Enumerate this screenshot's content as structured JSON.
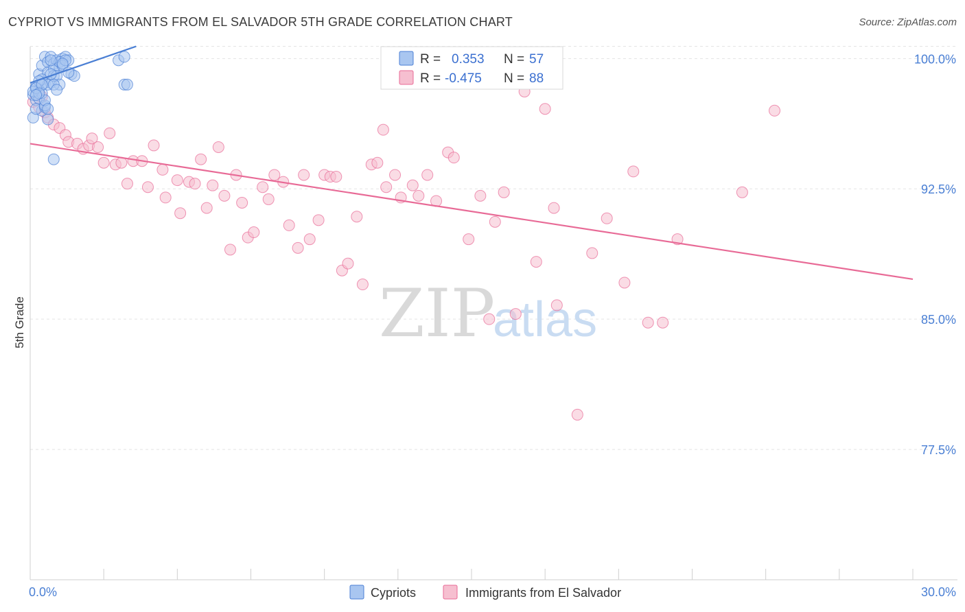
{
  "title": "CYPRIOT VS IMMIGRANTS FROM EL SALVADOR 5TH GRADE CORRELATION CHART",
  "source": "Source: ZipAtlas.com",
  "watermark": {
    "zip": "ZIP",
    "atlas": "atlas"
  },
  "colors": {
    "blue": "#4a7fd4",
    "blue_fill": "#a9c6f0",
    "pink": "#e86a96",
    "pink_fill": "#f6bfd0",
    "grid": "#e3e3e3"
  },
  "legend": {
    "r_label": "R =",
    "n_label": "N =",
    "rows": [
      {
        "series": "Cypriots",
        "r": "0.353",
        "n": "57"
      },
      {
        "series": "Immigrants from El Salvador",
        "r": "-0.475",
        "n": "88"
      }
    ]
  },
  "chart_data": {
    "type": "scatter",
    "title": "CYPRIOT VS IMMIGRANTS FROM EL SALVADOR 5TH GRADE CORRELATION CHART",
    "xlabel": "",
    "ylabel": "5th Grade",
    "xlim": [
      0,
      30
    ],
    "ylim": [
      70.0,
      101.0
    ],
    "x_tick_labels": [
      "0.0%",
      "30.0%"
    ],
    "y_ticks": [
      100.0,
      92.5,
      85.0,
      77.5
    ],
    "y_tick_labels": [
      "100.0%",
      "92.5%",
      "85.0%",
      "77.5%"
    ],
    "grid": true,
    "legend_position": "top-center",
    "series": [
      {
        "name": "Cypriots",
        "color": "#4a7fd4",
        "trend": {
          "x": [
            0.0,
            3.6
          ],
          "y": [
            98.6,
            100.7
          ]
        },
        "points": [
          [
            0.1,
            97.9
          ],
          [
            0.2,
            98.4
          ],
          [
            0.3,
            99.1
          ],
          [
            0.4,
            99.6
          ],
          [
            0.5,
            100.1
          ],
          [
            0.6,
            99.8
          ],
          [
            0.7,
            100.1
          ],
          [
            0.8,
            99.7
          ],
          [
            0.9,
            99.9
          ],
          [
            1.0,
            99.5
          ],
          [
            1.1,
            100.0
          ],
          [
            1.2,
            100.1
          ],
          [
            1.3,
            99.9
          ],
          [
            1.4,
            99.1
          ],
          [
            1.5,
            99.0
          ],
          [
            0.2,
            97.6
          ],
          [
            0.3,
            98.2
          ],
          [
            0.4,
            97.0
          ],
          [
            0.5,
            98.6
          ],
          [
            0.6,
            99.2
          ],
          [
            0.7,
            98.6
          ],
          [
            0.8,
            99.4
          ],
          [
            1.0,
            99.8
          ],
          [
            1.1,
            99.6
          ],
          [
            1.2,
            99.9
          ],
          [
            0.1,
            96.6
          ],
          [
            0.2,
            97.1
          ],
          [
            0.3,
            97.7
          ],
          [
            0.4,
            98.8
          ],
          [
            0.5,
            97.2
          ],
          [
            0.6,
            98.5
          ],
          [
            0.7,
            99.9
          ],
          [
            0.8,
            99.0
          ],
          [
            0.9,
            99.0
          ],
          [
            1.0,
            98.5
          ],
          [
            1.1,
            99.7
          ],
          [
            0.2,
            98.3
          ],
          [
            0.3,
            98.7
          ],
          [
            0.4,
            98.0
          ],
          [
            0.5,
            97.3
          ],
          [
            0.6,
            96.5
          ],
          [
            0.8,
            98.5
          ],
          [
            3.0,
            99.9
          ],
          [
            3.2,
            100.1
          ],
          [
            3.2,
            98.5
          ],
          [
            3.3,
            98.5
          ],
          [
            0.9,
            98.2
          ],
          [
            0.1,
            98.1
          ],
          [
            0.2,
            98.3
          ],
          [
            0.4,
            98.5
          ],
          [
            0.5,
            97.6
          ],
          [
            0.7,
            99.1
          ],
          [
            0.8,
            94.2
          ],
          [
            1.3,
            99.2
          ],
          [
            0.6,
            97.1
          ],
          [
            0.3,
            98.0
          ],
          [
            0.2,
            97.9
          ]
        ]
      },
      {
        "name": "Immigrants from El Salvador",
        "color": "#e86a96",
        "trend": {
          "x": [
            0.0,
            30.0
          ],
          "y": [
            95.1,
            87.3
          ]
        },
        "points": [
          [
            0.1,
            97.5
          ],
          [
            0.3,
            97.2
          ],
          [
            0.4,
            97.8
          ],
          [
            0.5,
            96.9
          ],
          [
            0.6,
            96.6
          ],
          [
            0.8,
            96.2
          ],
          [
            1.0,
            96.0
          ],
          [
            1.2,
            95.6
          ],
          [
            1.3,
            95.2
          ],
          [
            1.6,
            95.1
          ],
          [
            1.8,
            94.8
          ],
          [
            2.0,
            95.0
          ],
          [
            2.1,
            95.4
          ],
          [
            2.3,
            94.9
          ],
          [
            2.5,
            94.0
          ],
          [
            2.7,
            95.7
          ],
          [
            2.9,
            93.9
          ],
          [
            3.1,
            94.0
          ],
          [
            3.3,
            92.8
          ],
          [
            3.5,
            94.1
          ],
          [
            3.8,
            94.1
          ],
          [
            4.2,
            95.0
          ],
          [
            4.0,
            92.6
          ],
          [
            4.5,
            93.6
          ],
          [
            4.6,
            92.0
          ],
          [
            5.0,
            93.0
          ],
          [
            5.1,
            91.1
          ],
          [
            5.4,
            92.9
          ],
          [
            5.6,
            92.8
          ],
          [
            5.8,
            94.2
          ],
          [
            6.0,
            91.4
          ],
          [
            6.2,
            92.7
          ],
          [
            6.4,
            94.9
          ],
          [
            6.6,
            92.1
          ],
          [
            6.8,
            89.0
          ],
          [
            7.0,
            93.3
          ],
          [
            7.2,
            91.7
          ],
          [
            7.4,
            89.7
          ],
          [
            7.6,
            90.0
          ],
          [
            7.9,
            92.6
          ],
          [
            8.1,
            91.9
          ],
          [
            8.3,
            93.3
          ],
          [
            8.6,
            92.9
          ],
          [
            8.8,
            90.4
          ],
          [
            9.1,
            89.1
          ],
          [
            9.3,
            93.3
          ],
          [
            9.5,
            89.6
          ],
          [
            9.8,
            90.7
          ],
          [
            10.0,
            93.3
          ],
          [
            10.2,
            93.2
          ],
          [
            10.4,
            93.2
          ],
          [
            10.6,
            87.8
          ],
          [
            10.8,
            88.2
          ],
          [
            11.1,
            90.9
          ],
          [
            11.3,
            87.0
          ],
          [
            11.6,
            93.9
          ],
          [
            11.8,
            94.0
          ],
          [
            12.0,
            95.9
          ],
          [
            12.1,
            92.6
          ],
          [
            12.4,
            93.3
          ],
          [
            12.6,
            92.0
          ],
          [
            13.0,
            92.7
          ],
          [
            13.2,
            92.1
          ],
          [
            13.5,
            93.3
          ],
          [
            13.8,
            91.8
          ],
          [
            14.2,
            94.6
          ],
          [
            14.4,
            94.3
          ],
          [
            14.9,
            89.6
          ],
          [
            15.3,
            92.1
          ],
          [
            15.6,
            85.0
          ],
          [
            15.8,
            90.6
          ],
          [
            16.1,
            92.3
          ],
          [
            16.5,
            85.3
          ],
          [
            16.8,
            98.1
          ],
          [
            17.2,
            88.3
          ],
          [
            17.5,
            97.1
          ],
          [
            17.8,
            91.4
          ],
          [
            17.9,
            85.8
          ],
          [
            18.6,
            79.5
          ],
          [
            19.1,
            88.8
          ],
          [
            19.6,
            90.8
          ],
          [
            20.2,
            87.1
          ],
          [
            20.5,
            93.5
          ],
          [
            21.0,
            84.8
          ],
          [
            21.5,
            84.8
          ],
          [
            22.0,
            89.6
          ],
          [
            24.2,
            92.3
          ],
          [
            25.3,
            97.0
          ]
        ]
      }
    ]
  }
}
